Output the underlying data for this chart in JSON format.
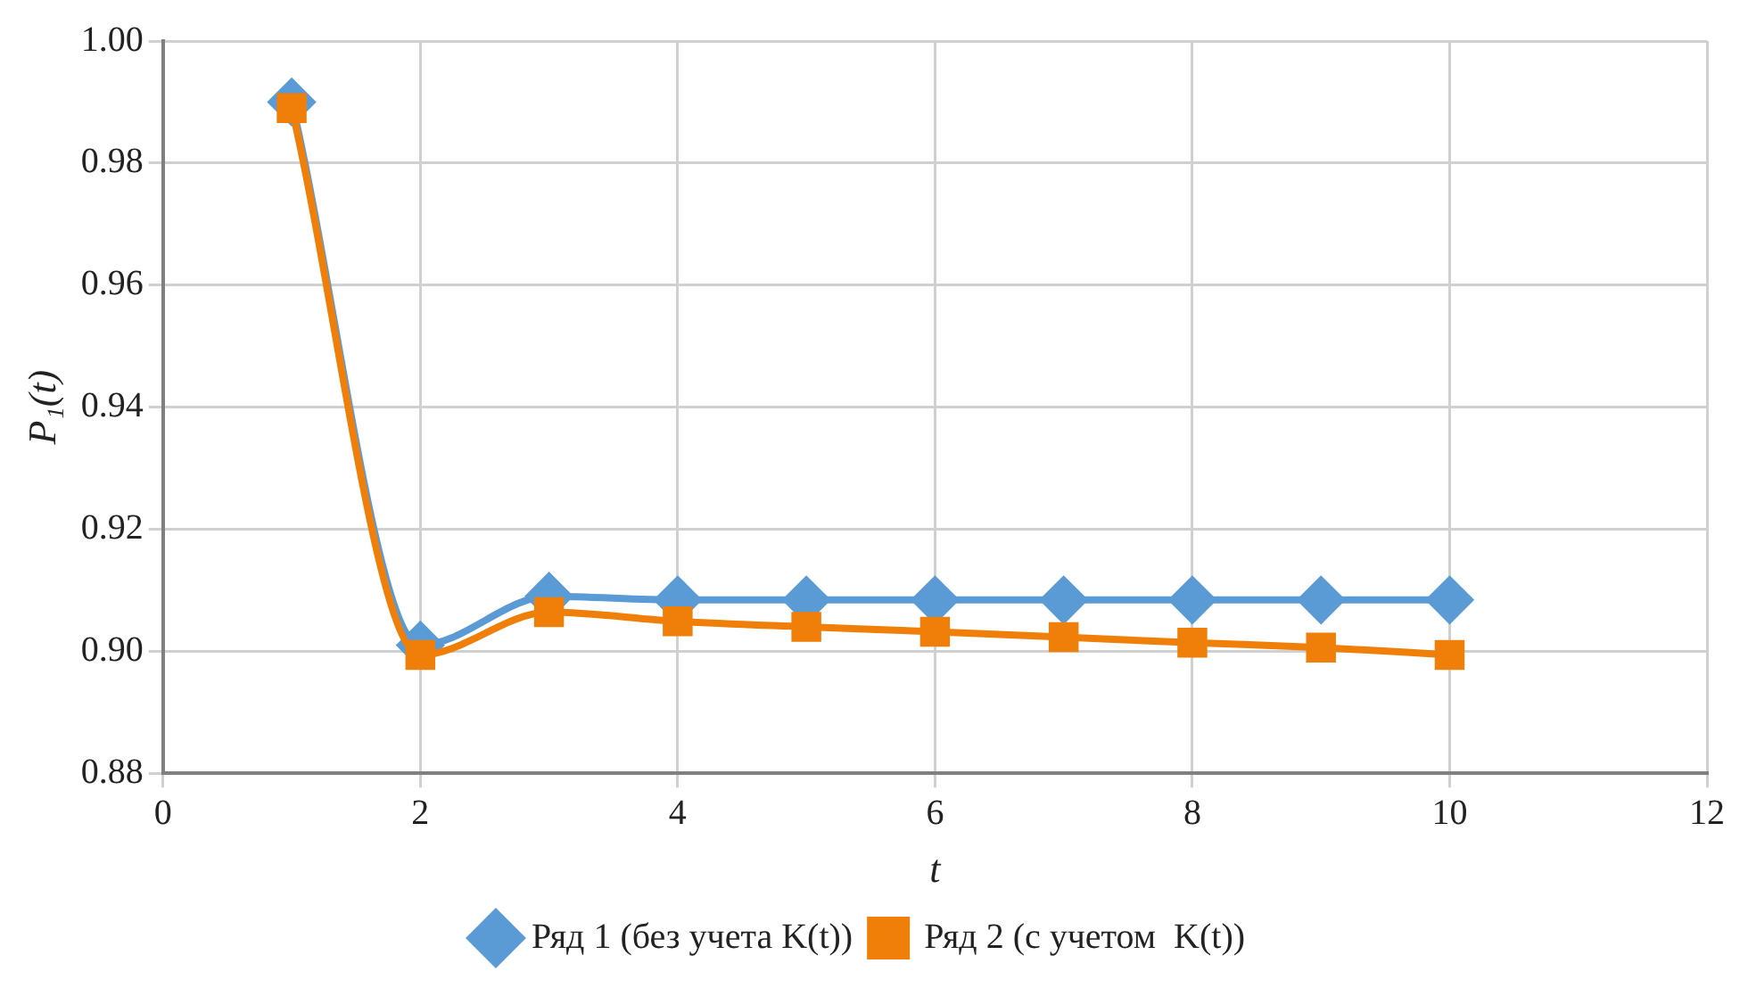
{
  "chart_data": {
    "type": "line",
    "xlabel": "t",
    "ylabel": "P₁(t)",
    "x": [
      1,
      2,
      3,
      4,
      5,
      6,
      7,
      8,
      9,
      10
    ],
    "series": [
      {
        "name": "Ряд 1 (без учета K(t))",
        "color": "#5b9bd5",
        "marker": "diamond",
        "values": [
          0.99,
          0.901,
          0.909,
          0.9084,
          0.9084,
          0.9084,
          0.9084,
          0.9084,
          0.9084,
          0.9084
        ]
      },
      {
        "name": "Ряд 2 (с учетом  K(t))",
        "color": "#f07f09",
        "marker": "square",
        "values": [
          0.989,
          0.8994,
          0.9064,
          0.9049,
          0.904,
          0.9032,
          0.9023,
          0.9014,
          0.9006,
          0.8994
        ]
      }
    ],
    "xlim": [
      0,
      12
    ],
    "xticks": [
      0,
      2,
      4,
      6,
      8,
      10,
      12
    ],
    "ylim": [
      0.88,
      1.0
    ],
    "yticks": [
      0.88,
      {
        "value": 0.9,
        "label": "0.90"
      },
      0.92,
      0.94,
      0.96,
      0.98,
      {
        "value": 1.0,
        "label": "1.00"
      }
    ],
    "grid": true,
    "legend": "bottom",
    "line_style": "solid"
  }
}
